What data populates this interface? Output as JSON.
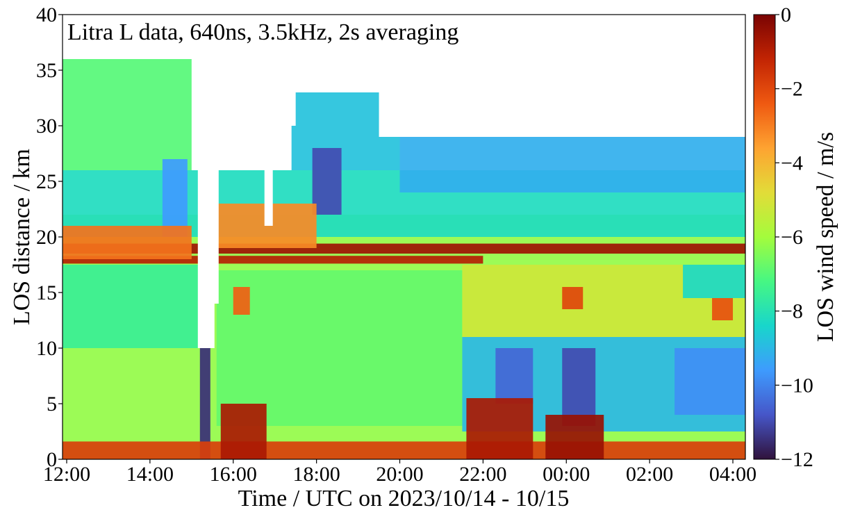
{
  "chart_data": {
    "type": "heatmap",
    "title": "",
    "annotation": "Litra L data, 640ns, 3.5kHz, 2s averaging",
    "xlabel": "Time / UTC on 2023/10/14 - 10/15",
    "ylabel": "LOS distance / km",
    "colorbar_label": "LOS wind speed / m/s",
    "x_unit": "hours since 2023-10-14 00:00 UTC",
    "xlim": [
      11.9,
      28.3
    ],
    "ylim": [
      0,
      40
    ],
    "clim": [
      -12,
      0
    ],
    "colormap": "turbo",
    "grid": false,
    "x_ticks": [
      {
        "value": 12,
        "label": "12:00"
      },
      {
        "value": 14,
        "label": "14:00"
      },
      {
        "value": 16,
        "label": "16:00"
      },
      {
        "value": 18,
        "label": "18:00"
      },
      {
        "value": 20,
        "label": "20:00"
      },
      {
        "value": 22,
        "label": "22:00"
      },
      {
        "value": 24,
        "label": "00:00"
      },
      {
        "value": 26,
        "label": "02:00"
      },
      {
        "value": 28,
        "label": "04:00"
      }
    ],
    "y_ticks": [
      {
        "value": 0,
        "label": "0"
      },
      {
        "value": 5,
        "label": "5"
      },
      {
        "value": 10,
        "label": "10"
      },
      {
        "value": 15,
        "label": "15"
      },
      {
        "value": 20,
        "label": "20"
      },
      {
        "value": 25,
        "label": "25"
      },
      {
        "value": 30,
        "label": "30"
      },
      {
        "value": 35,
        "label": "35"
      },
      {
        "value": 40,
        "label": "40"
      }
    ],
    "colorbar_ticks": [
      {
        "value": 0,
        "label": "0"
      },
      {
        "value": -2,
        "label": "−2"
      },
      {
        "value": -4,
        "label": "−4"
      },
      {
        "value": -6,
        "label": "−6"
      },
      {
        "value": -8,
        "label": "−8"
      },
      {
        "value": -10,
        "label": "−10"
      },
      {
        "value": -12,
        "label": "−12"
      }
    ],
    "regions": [
      {
        "x": [
          11.9,
          28.3
        ],
        "y": [
          0,
          22
        ],
        "value": -6.2
      },
      {
        "x": [
          11.9,
          15.2
        ],
        "y": [
          10,
          17.5
        ],
        "value": -7.5
      },
      {
        "x": [
          15.6,
          21.5
        ],
        "y": [
          3,
          17
        ],
        "value": -6.8
      },
      {
        "x": [
          21.5,
          28.3
        ],
        "y": [
          11,
          17.5
        ],
        "value": -5.2
      },
      {
        "x": [
          11.9,
          28.3
        ],
        "y": [
          20,
          26
        ],
        "value": -8.2
      },
      {
        "x": [
          11.9,
          15.0
        ],
        "y": [
          26,
          36
        ],
        "value": -7.0
      },
      {
        "x": [
          17.4,
          20.0
        ],
        "y": [
          26,
          33
        ],
        "value": -8.8
      },
      {
        "x": [
          20.0,
          28.3
        ],
        "y": [
          24,
          29
        ],
        "value": -9.2
      },
      {
        "x": [
          14.3,
          14.9
        ],
        "y": [
          20,
          27
        ],
        "value": -9.6
      },
      {
        "x": [
          17.9,
          18.6
        ],
        "y": [
          22,
          28
        ],
        "value": -11.0
      },
      {
        "x": [
          21.5,
          28.3
        ],
        "y": [
          2.5,
          11
        ],
        "value": -9.0
      },
      {
        "x": [
          22.3,
          23.2
        ],
        "y": [
          5,
          10
        ],
        "value": -10.5
      },
      {
        "x": [
          23.9,
          24.7
        ],
        "y": [
          3,
          10
        ],
        "value": -11.0
      },
      {
        "x": [
          26.6,
          28.3
        ],
        "y": [
          4,
          10
        ],
        "value": -9.8
      },
      {
        "x": [
          26.8,
          28.3
        ],
        "y": [
          14.5,
          17.5
        ],
        "value": -8.3
      },
      {
        "x": [
          15.2,
          15.45
        ],
        "y": [
          0,
          10
        ],
        "value": -11.5
      },
      {
        "x": [
          11.9,
          28.3
        ],
        "y": [
          0,
          1.6
        ],
        "value": -1.8
      },
      {
        "x": [
          21.6,
          23.2
        ],
        "y": [
          0,
          5.5
        ],
        "value": -0.8
      },
      {
        "x": [
          23.5,
          24.9
        ],
        "y": [
          0,
          4
        ],
        "value": -0.5
      },
      {
        "x": [
          15.7,
          16.8
        ],
        "y": [
          0,
          5
        ],
        "value": -0.8
      },
      {
        "x": [
          11.9,
          28.3
        ],
        "y": [
          18.5,
          19.4
        ],
        "value": -0.6
      },
      {
        "x": [
          11.9,
          22.0
        ],
        "y": [
          17.6,
          18.3
        ],
        "value": -1.0
      },
      {
        "x": [
          11.9,
          15.0
        ],
        "y": [
          18,
          21
        ],
        "value": -2.8
      },
      {
        "x": [
          15.6,
          18.0
        ],
        "y": [
          19,
          23
        ],
        "value": -3.2
      },
      {
        "x": [
          23.9,
          24.4
        ],
        "y": [
          13.5,
          15.5
        ],
        "value": -2.0
      },
      {
        "x": [
          16.0,
          16.4
        ],
        "y": [
          13,
          15.5
        ],
        "value": -2.5
      },
      {
        "x": [
          27.5,
          28.0
        ],
        "y": [
          12.5,
          14.5
        ],
        "value": -2.2
      }
    ],
    "no_data": [
      {
        "x": [
          15.15,
          15.55
        ],
        "y": [
          10,
          40
        ]
      },
      {
        "x": [
          15.3,
          15.65
        ],
        "y": [
          14,
          40
        ]
      },
      {
        "x": [
          16.75,
          16.95
        ],
        "y": [
          21,
          31
        ]
      },
      {
        "x": [
          11.9,
          28.3
        ],
        "y": [
          36,
          40
        ]
      },
      {
        "x": [
          19.5,
          28.3
        ],
        "y": [
          29,
          36
        ]
      },
      {
        "x": [
          15.6,
          17.5
        ],
        "y": [
          30,
          36
        ]
      }
    ]
  }
}
